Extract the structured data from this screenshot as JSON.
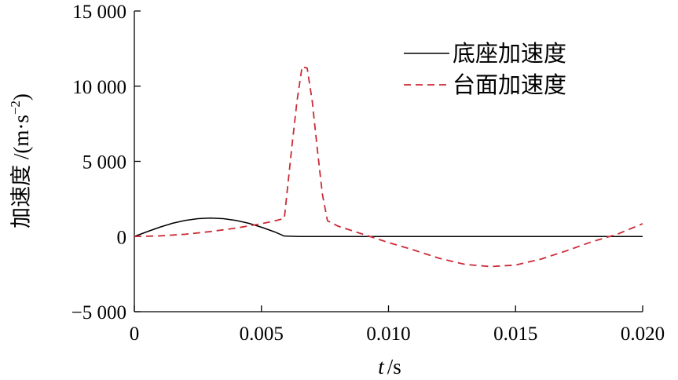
{
  "chart_data": {
    "type": "line",
    "xlabel_italic": "t",
    "xlabel_unit": "/s",
    "ylabel_main": "加速度 /(m·s",
    "ylabel_exp": "−2",
    "ylabel_close": ")",
    "xlim": [
      0,
      0.02
    ],
    "ylim": [
      -5000,
      15000
    ],
    "xticks": [
      0,
      0.005,
      0.01,
      0.015,
      0.02
    ],
    "xtick_labels": [
      "0",
      "0.005",
      "0.010",
      "0.015",
      "0.020"
    ],
    "yticks": [
      15000,
      10000,
      5000,
      0,
      -5000
    ],
    "ytick_labels": [
      "15 000",
      "10 000",
      "5 000",
      "0",
      "−5 000"
    ],
    "grid": false,
    "legend_position": "top-right",
    "series": [
      {
        "name": "底座加速度",
        "color": "#000000",
        "dash": "solid",
        "x": [
          0,
          0.0005,
          0.001,
          0.0015,
          0.002,
          0.0025,
          0.003,
          0.0035,
          0.004,
          0.0045,
          0.005,
          0.0055,
          0.0059,
          0.0065,
          0.008,
          0.01,
          0.012,
          0.014,
          0.016,
          0.018,
          0.02
        ],
        "y": [
          0,
          320,
          620,
          880,
          1070,
          1190,
          1230,
          1190,
          1070,
          880,
          620,
          320,
          30,
          0,
          0,
          0,
          0,
          0,
          0,
          0,
          0
        ]
      },
      {
        "name": "台面加速度",
        "color": "#cc2a36",
        "dash": "dashed",
        "x": [
          0,
          0.001,
          0.002,
          0.003,
          0.004,
          0.005,
          0.0055,
          0.0059,
          0.00605,
          0.0062,
          0.0064,
          0.0066,
          0.0068,
          0.007,
          0.0072,
          0.0074,
          0.0076,
          0.008,
          0.009,
          0.01,
          0.011,
          0.012,
          0.013,
          0.014,
          0.015,
          0.016,
          0.017,
          0.018,
          0.019,
          0.02
        ],
        "y": [
          0,
          40,
          150,
          330,
          560,
          850,
          1030,
          1200,
          3600,
          6000,
          9000,
          11300,
          11200,
          9000,
          5800,
          2800,
          1050,
          700,
          150,
          -400,
          -900,
          -1450,
          -1850,
          -2000,
          -1900,
          -1500,
          -950,
          -350,
          150,
          850
        ]
      }
    ]
  }
}
